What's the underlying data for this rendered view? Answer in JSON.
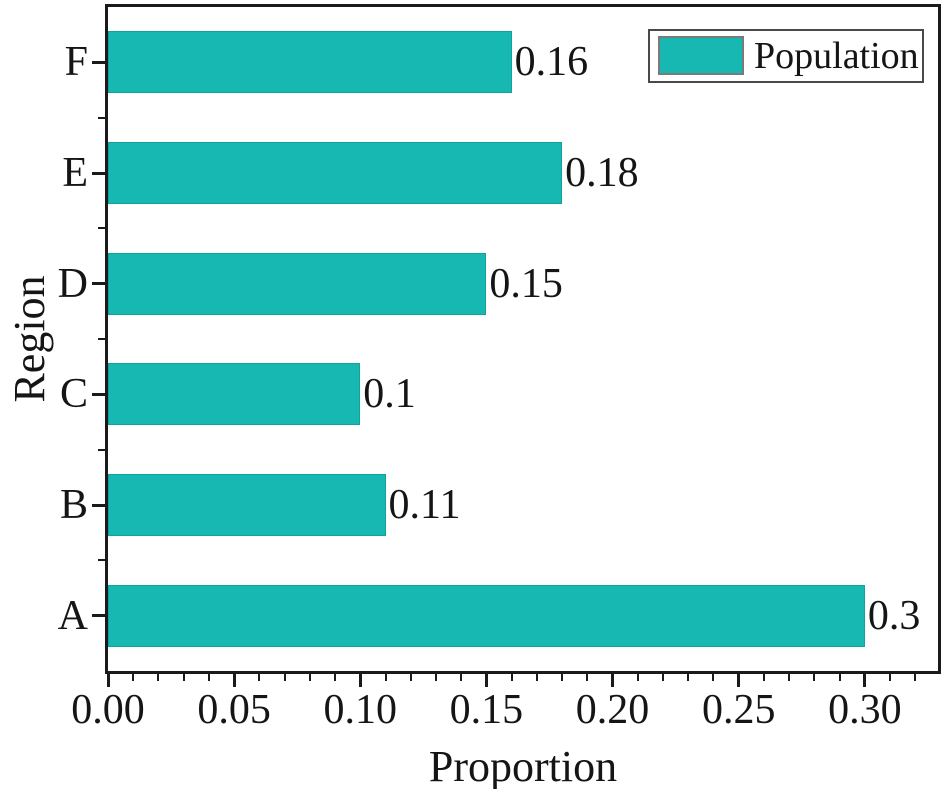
{
  "chart_data": {
    "type": "bar",
    "orientation": "horizontal",
    "row_order": "top-to-bottom",
    "categories": [
      "F",
      "E",
      "D",
      "C",
      "B",
      "A"
    ],
    "series": [
      {
        "name": "Population",
        "values": [
          0.16,
          0.18,
          0.15,
          0.1,
          0.11,
          0.3
        ]
      }
    ],
    "value_labels": [
      "0.16",
      "0.18",
      "0.15",
      "0.1",
      "0.11",
      "0.3"
    ],
    "xlabel": "Proportion",
    "ylabel": "Region",
    "xlim": [
      0,
      0.329
    ],
    "x_tick_values": [
      0,
      0.05,
      0.1,
      0.15,
      0.2,
      0.25,
      0.3
    ],
    "x_tick_labels": [
      "0.00",
      "0.05",
      "0.10",
      "0.15",
      "0.20",
      "0.25",
      "0.30"
    ],
    "x_minor_tick_step": 0.01,
    "grid": false,
    "legend": {
      "position": "top-right",
      "entries": [
        "Population"
      ]
    },
    "colors": {
      "bar": "#16b8b1",
      "bar_edge": "#10a29c",
      "axis": "#1a1a1a",
      "text": "#151515",
      "legend_border": "#4a4a4a",
      "swatch_border": "#7a7a7a",
      "background": "#ffffff"
    }
  }
}
